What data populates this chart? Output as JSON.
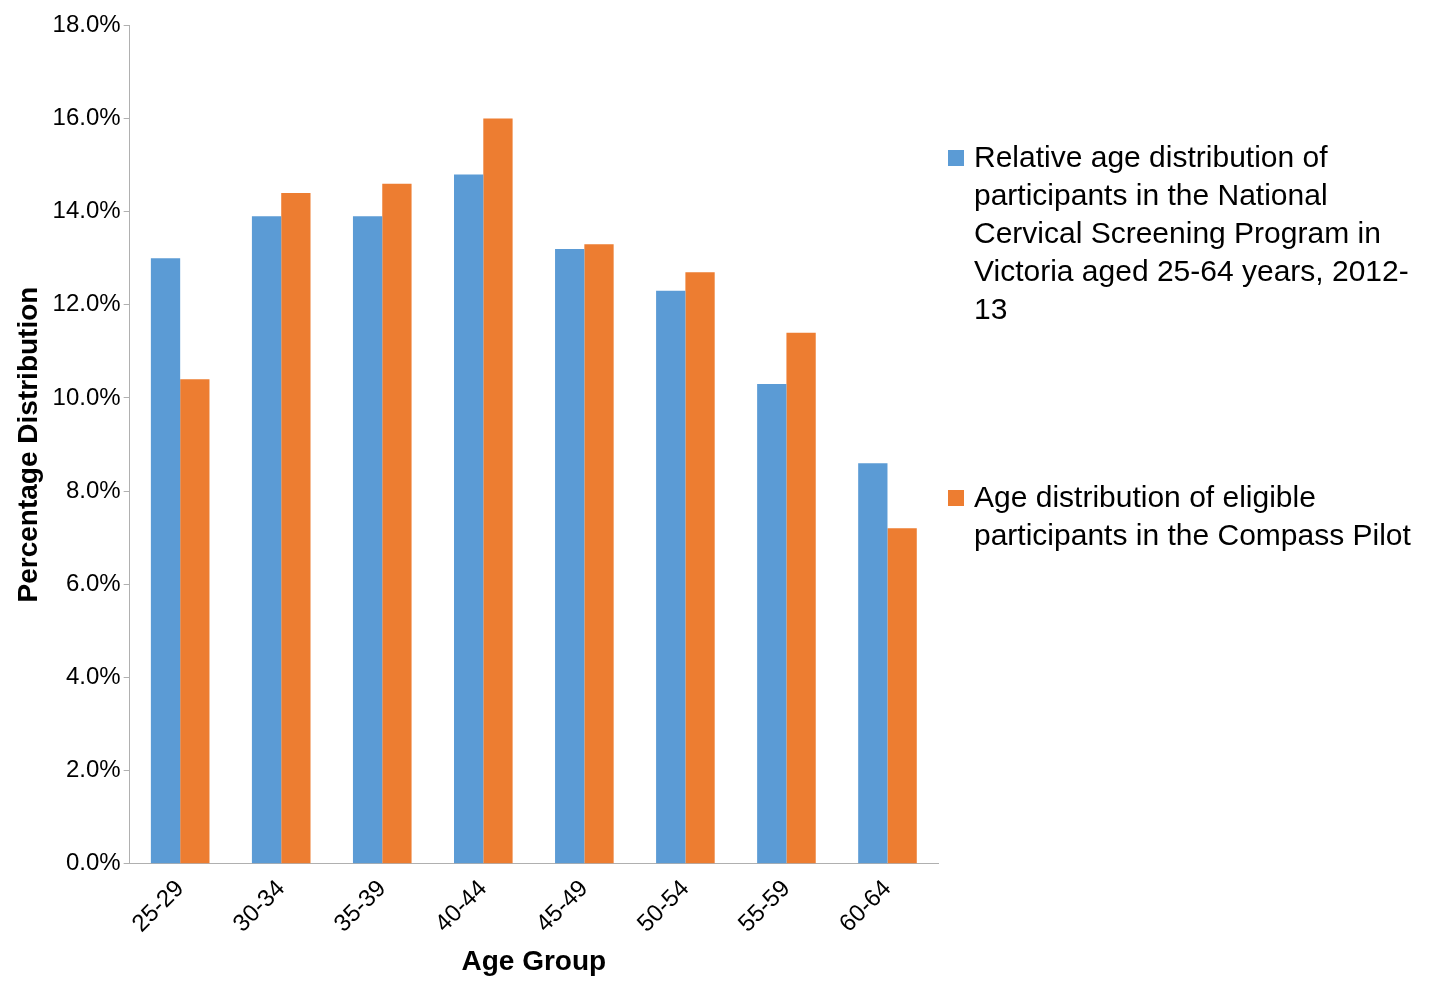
{
  "chart_data": {
    "type": "bar",
    "xlabel": "Age Group",
    "ylabel": "Percentage Distribution",
    "categories": [
      "25-29",
      "30-34",
      "35-39",
      "40-44",
      "45-49",
      "50-54",
      "55-59",
      "60-64"
    ],
    "series": [
      {
        "name": "Relative age distribution of participants in the National Cervical Screening Program in Victoria aged 25-64 years, 2012-13",
        "color": "#5b9bd5",
        "values": [
          13.0,
          13.9,
          13.9,
          14.8,
          13.2,
          12.3,
          10.3,
          8.6
        ]
      },
      {
        "name": "Age distribution of eligible participants in the Compass Pilot",
        "color": "#ed7d31",
        "values": [
          10.4,
          14.4,
          14.6,
          16.0,
          13.3,
          12.7,
          11.4,
          7.2
        ]
      }
    ],
    "ylim": [
      0,
      18
    ],
    "yticks": [
      {
        "value": 0,
        "label": "0.0%"
      },
      {
        "value": 2,
        "label": "2.0%"
      },
      {
        "value": 4,
        "label": "4.0%"
      },
      {
        "value": 6,
        "label": "6.0%"
      },
      {
        "value": 8,
        "label": "8.0%"
      },
      {
        "value": 10,
        "label": "10.0%"
      },
      {
        "value": 12,
        "label": "12.0%"
      },
      {
        "value": 14,
        "label": "14.0%"
      },
      {
        "value": 16,
        "label": "16.0%"
      },
      {
        "value": 18,
        "label": "18.0%"
      }
    ],
    "grid": false,
    "legend": "right"
  }
}
